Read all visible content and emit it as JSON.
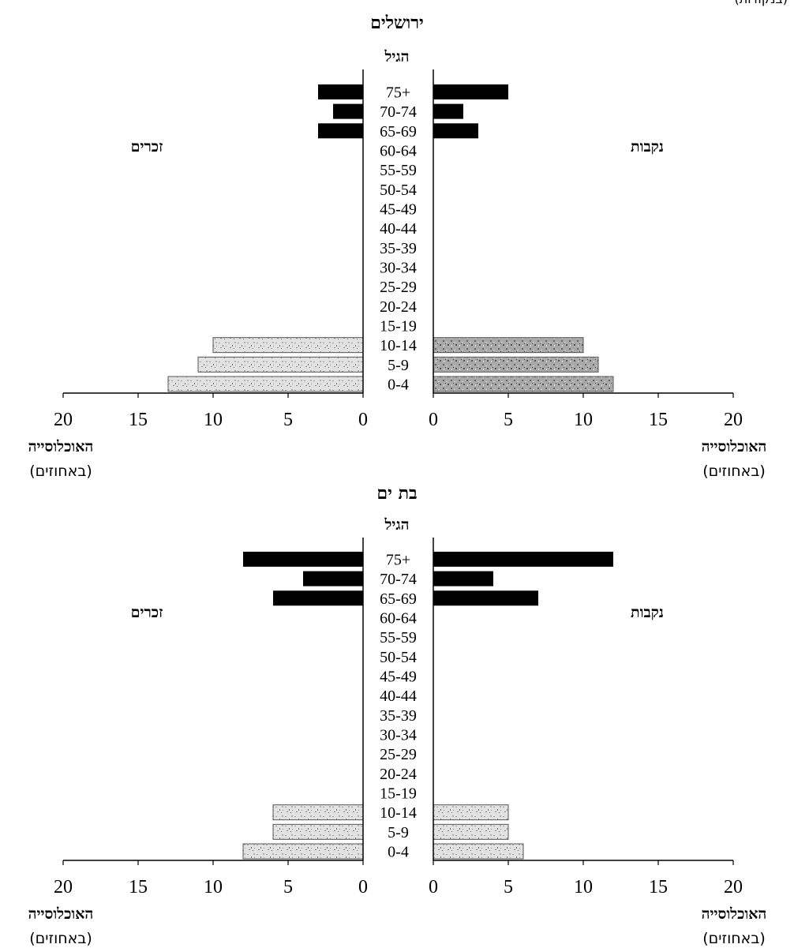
{
  "corner_text": "(בנקודות)",
  "chart_data": [
    {
      "type": "bar",
      "title": "ירושלים",
      "age_axis_label": "הגיל",
      "male_label": "זכרים",
      "female_label": "נקבות",
      "xlabel_left": "האוכלוסייה",
      "xlabel_left_unit": "(באחוזים)",
      "xlabel_right": "האוכלוסייה",
      "xlabel_right_unit": "(באחוזים)",
      "xlim": [
        0,
        20
      ],
      "xticks": [
        0,
        5,
        10,
        15,
        20
      ],
      "categories": [
        "0-4",
        "5-9",
        "10-14",
        "15-19",
        "20-24",
        "25-29",
        "30-34",
        "35-39",
        "40-44",
        "45-49",
        "50-54",
        "55-59",
        "60-64",
        "65-69",
        "70-74",
        "75+"
      ],
      "series": [
        {
          "name": "זכרים",
          "values": [
            13,
            11,
            10,
            0,
            0,
            0,
            0,
            0,
            0,
            0,
            0,
            0,
            0,
            3,
            2,
            3
          ]
        },
        {
          "name": "נקבות",
          "values": [
            12,
            11,
            10,
            0,
            0,
            0,
            0,
            0,
            0,
            0,
            0,
            0,
            0,
            3,
            2,
            5
          ]
        }
      ]
    },
    {
      "type": "bar",
      "title": "בת ים",
      "age_axis_label": "הגיל",
      "male_label": "זכרים",
      "female_label": "נקבות",
      "xlabel_left": "האוכלוסייה",
      "xlabel_left_unit": "(באחוזים)",
      "xlabel_right": "האוכלוסייה",
      "xlabel_right_unit": "(באחוזים)",
      "xlim": [
        0,
        20
      ],
      "xticks": [
        0,
        5,
        10,
        15,
        20
      ],
      "categories": [
        "0-4",
        "5-9",
        "10-14",
        "15-19",
        "20-24",
        "25-29",
        "30-34",
        "35-39",
        "40-44",
        "45-49",
        "50-54",
        "55-59",
        "60-64",
        "65-69",
        "70-74",
        "75+"
      ],
      "series": [
        {
          "name": "זכרים",
          "values": [
            8,
            6,
            6,
            0,
            0,
            0,
            0,
            0,
            0,
            0,
            0,
            0,
            0,
            6,
            4,
            8
          ]
        },
        {
          "name": "נקבות",
          "values": [
            6,
            5,
            5,
            0,
            0,
            0,
            0,
            0,
            0,
            0,
            0,
            0,
            0,
            7,
            4,
            12
          ]
        }
      ]
    }
  ]
}
